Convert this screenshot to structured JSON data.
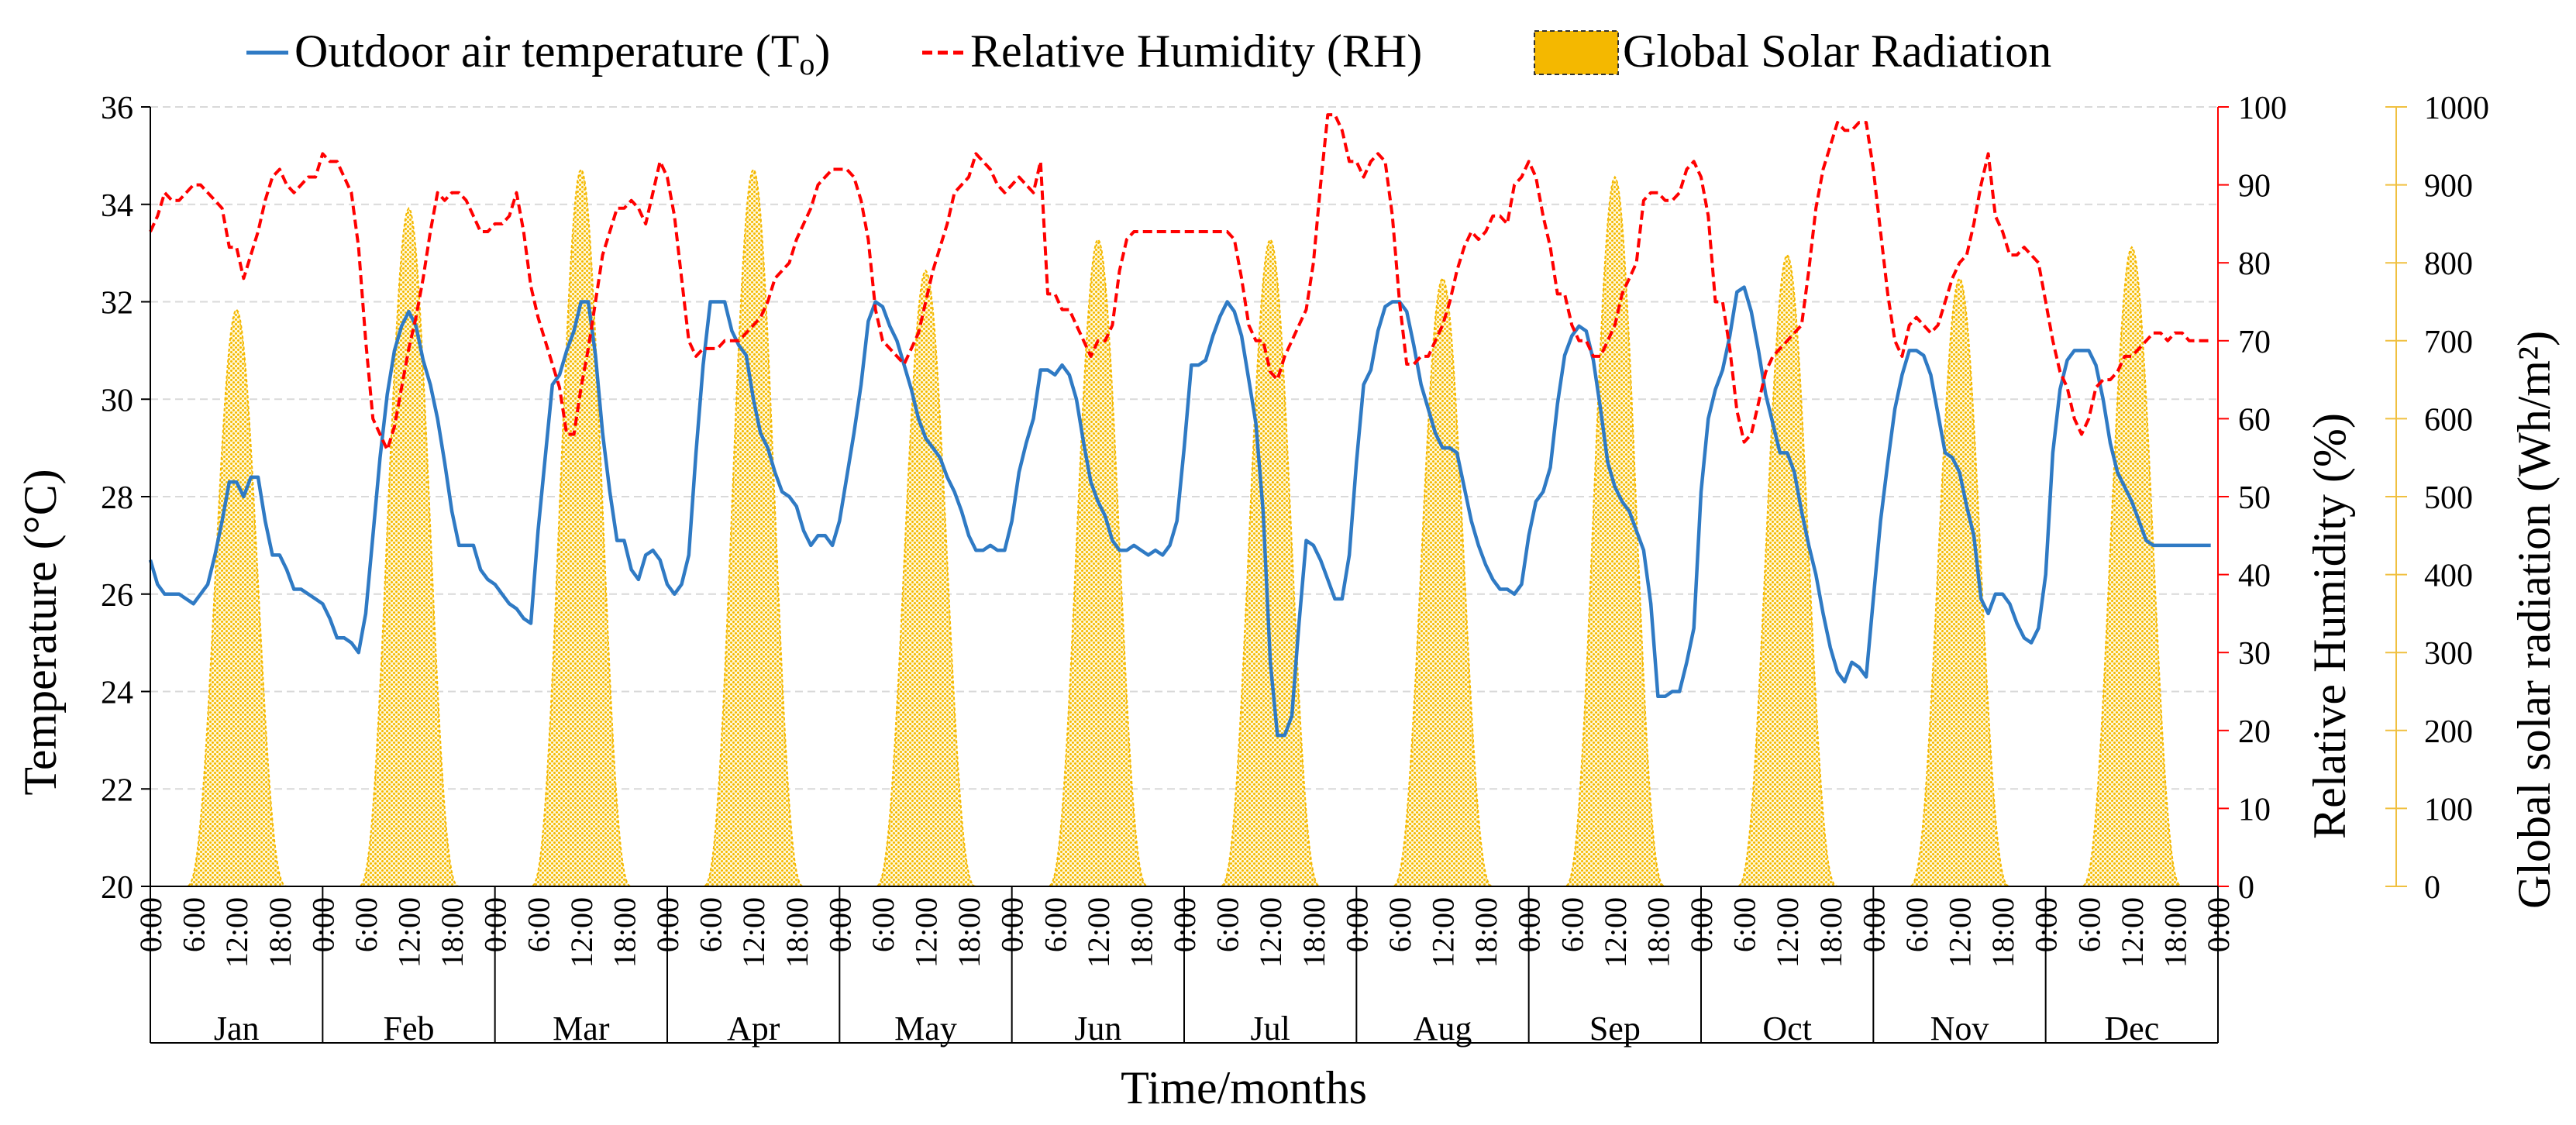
{
  "chart_data": {
    "type": "line",
    "title": "",
    "colors": {
      "temperature": "#2f7ac4",
      "humidity": "#ff0000",
      "solar": "#f4b800",
      "solar_axis": "#f0c040",
      "grid": "#d9d9d9"
    },
    "legend": {
      "position": "top",
      "items": [
        {
          "key": "temperature",
          "label_main": "Outdoor air temperature (T",
          "label_sub": "o",
          "label_end": ")"
        },
        {
          "key": "humidity",
          "label_main": "Relative Humidity (RH)"
        },
        {
          "key": "solar",
          "label_main": "Global Solar Radiation"
        }
      ]
    },
    "axes": {
      "x_title": "Time/months",
      "y_left": {
        "title": "Temperature (°C)",
        "min": 20,
        "max": 36,
        "ticks": [
          "20",
          "22",
          "24",
          "26",
          "28",
          "30",
          "32",
          "34",
          "36"
        ]
      },
      "y_right1": {
        "title": "Relative Humidity (%)",
        "min": 0,
        "max": 100,
        "ticks": [
          "0",
          "10",
          "20",
          "30",
          "40",
          "50",
          "60",
          "70",
          "80",
          "90",
          "100"
        ]
      },
      "y_right2": {
        "title": "Global solar radiation (Wh/m²)",
        "min": 0,
        "max": 1000,
        "ticks": [
          "0",
          "100",
          "200",
          "300",
          "400",
          "500",
          "600",
          "700",
          "800",
          "900",
          "1000"
        ]
      }
    },
    "hour_labels": [
      "0:00",
      "6:00",
      "12:00",
      "18:00"
    ],
    "final_hour_label": "0:00",
    "months": [
      "Jan",
      "Feb",
      "Mar",
      "Apr",
      "May",
      "Jun",
      "Jul",
      "Aug",
      "Sep",
      "Oct",
      "Nov",
      "Dec"
    ],
    "series": [
      {
        "name": "Outdoor air temperature (To)",
        "axis": "temperature",
        "monthly_hourly": [
          [
            26.7,
            26.2,
            26.0,
            26.0,
            26.0,
            25.9,
            25.8,
            26.0,
            26.2,
            26.8,
            27.5,
            28.3,
            28.3,
            28.0,
            28.4,
            28.4,
            27.5,
            26.8,
            26.8,
            26.5,
            26.1,
            26.1,
            26.0,
            25.9
          ],
          [
            25.8,
            25.5,
            25.1,
            25.1,
            25.0,
            24.8,
            25.6,
            27.2,
            28.8,
            30.1,
            31.0,
            31.5,
            31.8,
            31.5,
            30.8,
            30.3,
            29.6,
            28.7,
            27.7,
            27.0,
            27.0,
            27.0,
            26.5,
            26.3
          ],
          [
            26.2,
            26.0,
            25.8,
            25.7,
            25.5,
            25.4,
            27.3,
            28.8,
            30.3,
            30.5,
            31.0,
            31.4,
            32.0,
            32.0,
            30.9,
            29.3,
            28.1,
            27.1,
            27.1,
            26.5,
            26.3,
            26.8,
            26.9,
            26.7
          ],
          [
            26.2,
            26.0,
            26.2,
            26.8,
            28.9,
            30.7,
            32.0,
            32.0,
            32.0,
            31.4,
            31.1,
            30.9,
            30.0,
            29.3,
            29.0,
            28.5,
            28.1,
            28.0,
            27.8,
            27.3,
            27.0,
            27.2,
            27.2,
            27.0
          ],
          [
            27.5,
            28.4,
            29.3,
            30.3,
            31.6,
            32.0,
            31.9,
            31.5,
            31.2,
            30.7,
            30.2,
            29.6,
            29.2,
            29.0,
            28.8,
            28.4,
            28.1,
            27.7,
            27.2,
            26.9,
            26.9,
            27.0,
            26.9,
            26.9
          ],
          [
            27.5,
            28.5,
            29.1,
            29.6,
            30.6,
            30.6,
            30.5,
            30.7,
            30.5,
            30.0,
            29.1,
            28.3,
            27.9,
            27.6,
            27.1,
            26.9,
            26.9,
            27.0,
            26.9,
            26.8,
            26.9,
            26.8,
            27.0,
            27.5
          ],
          [
            29.0,
            30.7,
            30.7,
            30.8,
            31.3,
            31.7,
            32.0,
            31.8,
            31.3,
            30.4,
            29.5,
            27.7,
            24.6,
            23.1,
            23.1,
            23.5,
            25.4,
            27.1,
            27.0,
            26.7,
            26.3,
            25.9,
            25.9,
            26.8
          ],
          [
            28.7,
            30.3,
            30.6,
            31.4,
            31.9,
            32.0,
            32.0,
            31.8,
            31.1,
            30.3,
            29.8,
            29.3,
            29.0,
            29.0,
            28.9,
            28.2,
            27.5,
            27.0,
            26.6,
            26.3,
            26.1,
            26.1,
            26.0,
            26.2
          ],
          [
            27.2,
            27.9,
            28.1,
            28.6,
            29.9,
            30.9,
            31.3,
            31.5,
            31.4,
            30.8,
            29.8,
            28.7,
            28.2,
            27.9,
            27.7,
            27.3,
            26.9,
            25.8,
            23.9,
            23.9,
            24.0,
            24.0,
            24.6,
            25.3
          ],
          [
            28.1,
            29.6,
            30.2,
            30.6,
            31.3,
            32.2,
            32.3,
            31.8,
            31.0,
            30.1,
            29.5,
            28.9,
            28.9,
            28.5,
            27.7,
            27.0,
            26.4,
            25.6,
            24.9,
            24.4,
            24.2,
            24.6,
            24.5,
            24.3
          ],
          [
            25.9,
            27.5,
            28.7,
            29.8,
            30.5,
            31.0,
            31.0,
            30.9,
            30.5,
            29.7,
            28.9,
            28.8,
            28.5,
            27.8,
            27.2,
            25.9,
            25.6,
            26.0,
            26.0,
            25.8,
            25.4,
            25.1,
            25.0,
            25.3
          ],
          [
            26.4,
            28.9,
            30.2,
            30.8,
            31.0,
            31.0,
            31.0,
            30.7,
            30.0,
            29.1,
            28.5,
            28.2,
            27.9,
            27.5,
            27.1,
            27.0,
            27.0,
            27.0,
            27.0,
            27.0,
            27.0,
            27.0,
            27.0,
            27.0
          ]
        ]
      },
      {
        "name": "Relative Humidity (RH)",
        "axis": "humidity",
        "monthly_hourly": [
          [
            84,
            86,
            89,
            88,
            88,
            89,
            90,
            90,
            89,
            88,
            87,
            82,
            82,
            78,
            81,
            84,
            88,
            91,
            92,
            90,
            89,
            90,
            91,
            91
          ],
          [
            94,
            93,
            93,
            91,
            89,
            82,
            70,
            60,
            58,
            56,
            59,
            64,
            69,
            73,
            78,
            84,
            89,
            88,
            89,
            89,
            88,
            86,
            84,
            84
          ],
          [
            85,
            85,
            86,
            89,
            84,
            77,
            73,
            70,
            67,
            64,
            58,
            58,
            64,
            69,
            75,
            81,
            84,
            87,
            87,
            88,
            87,
            85,
            89,
            93
          ],
          [
            91,
            86,
            78,
            70,
            68,
            69,
            69,
            69,
            70,
            70,
            70,
            71,
            72,
            73,
            75,
            78,
            79,
            80,
            83,
            85,
            87,
            90,
            91,
            92
          ],
          [
            92,
            92,
            91,
            88,
            83,
            74,
            70,
            69,
            68,
            67,
            69,
            71,
            75,
            79,
            82,
            85,
            89,
            90,
            91,
            94,
            93,
            92,
            90,
            89
          ],
          [
            90,
            91,
            90,
            89,
            93,
            76,
            76,
            74,
            74,
            72,
            70,
            68,
            70,
            70,
            72,
            79,
            83,
            84,
            84,
            84,
            84,
            84,
            84,
            84
          ],
          [
            84,
            84,
            84,
            84,
            84,
            84,
            84,
            83,
            78,
            72,
            70,
            70,
            66,
            65,
            68,
            70,
            72,
            74,
            80,
            90,
            99,
            99,
            97,
            93
          ],
          [
            93,
            91,
            93,
            94,
            93,
            86,
            75,
            67,
            67,
            68,
            68,
            70,
            72,
            75,
            79,
            82,
            84,
            83,
            84,
            86,
            86,
            85,
            90,
            91
          ],
          [
            93,
            91,
            86,
            82,
            76,
            76,
            72,
            70,
            70,
            68,
            68,
            70,
            72,
            76,
            78,
            80,
            88,
            89,
            89,
            88,
            88,
            89,
            92,
            93
          ],
          [
            91,
            86,
            75,
            75,
            69,
            61,
            57,
            58,
            62,
            66,
            68,
            69,
            70,
            71,
            72,
            79,
            87,
            92,
            95,
            98,
            97,
            97,
            98,
            98
          ],
          [
            92,
            84,
            76,
            70,
            68,
            72,
            73,
            72,
            71,
            72,
            75,
            78,
            80,
            81,
            85,
            90,
            94,
            86,
            84,
            81,
            81,
            82,
            81,
            80
          ],
          [
            75,
            70,
            66,
            64,
            60,
            58,
            60,
            64,
            65,
            65,
            66,
            68,
            68,
            69,
            70,
            71,
            71,
            70,
            71,
            71,
            70,
            70,
            70,
            70
          ]
        ]
      },
      {
        "name": "Global Solar Radiation",
        "axis": "solar",
        "peaks": [
          740,
          870,
          920,
          920,
          790,
          830,
          830,
          780,
          910,
          810,
          780,
          820
        ]
      }
    ]
  }
}
